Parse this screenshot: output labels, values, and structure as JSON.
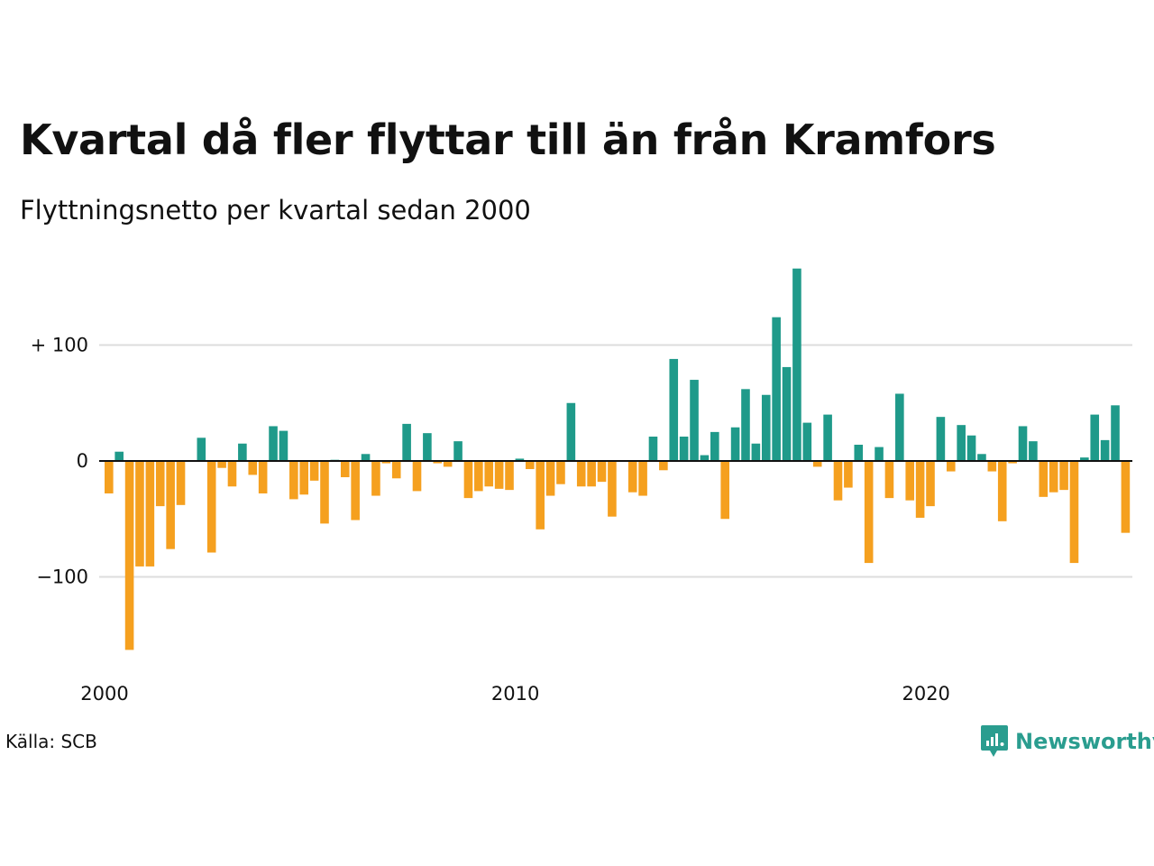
{
  "title": "Kvartal då fler flyttar till än från Kramfors",
  "subtitle": "Flyttningsnetto per kvartal sedan 2000",
  "source": "Källa: SCB",
  "brand": "Newsworthy",
  "colors": {
    "positive": "#1f9a8a",
    "negative": "#f5a01f",
    "grid": "#dddddd",
    "brand": "#2a9d8f"
  },
  "chart_data": {
    "type": "bar",
    "title": "Kvartal då fler flyttar till än från Kramfors",
    "subtitle": "Flyttningsnetto per kvartal sedan 2000",
    "xlabel": "",
    "ylabel": "",
    "ylim": [
      -170,
      170
    ],
    "yticks": [
      {
        "value": 100,
        "label": "+ 100"
      },
      {
        "value": 0,
        "label": "0"
      },
      {
        "value": -100,
        "label": "−100"
      }
    ],
    "xticks": [
      {
        "value": 2000,
        "label": "2000"
      },
      {
        "value": 2010,
        "label": "2010"
      },
      {
        "value": 2020,
        "label": "2020"
      }
    ],
    "grid": true,
    "x_start": "2000 Q1",
    "x_unit": "quarter",
    "values": [
      -28,
      8,
      -163,
      -91,
      -91,
      -39,
      -76,
      -38,
      0,
      20,
      -79,
      -6,
      -22,
      15,
      -12,
      -28,
      30,
      26,
      -33,
      -29,
      -17,
      -54,
      1,
      -14,
      -51,
      6,
      -30,
      -2,
      -15,
      32,
      -26,
      24,
      -2,
      -5,
      17,
      -32,
      -26,
      -22,
      -24,
      -25,
      2,
      -7,
      -59,
      -30,
      -20,
      50,
      -22,
      -22,
      -18,
      -48,
      0,
      -27,
      -30,
      21,
      -8,
      88,
      21,
      70,
      5,
      25,
      -50,
      29,
      62,
      15,
      57,
      124,
      81,
      166,
      33,
      -5,
      40,
      -34,
      -23,
      14,
      -88,
      12,
      -32,
      58,
      -34,
      -49,
      -39,
      38,
      -9,
      31,
      22,
      6,
      -9,
      -52,
      -2,
      30,
      17,
      -31,
      -27,
      -25,
      -88,
      3,
      40,
      18,
      48,
      -62
    ]
  }
}
